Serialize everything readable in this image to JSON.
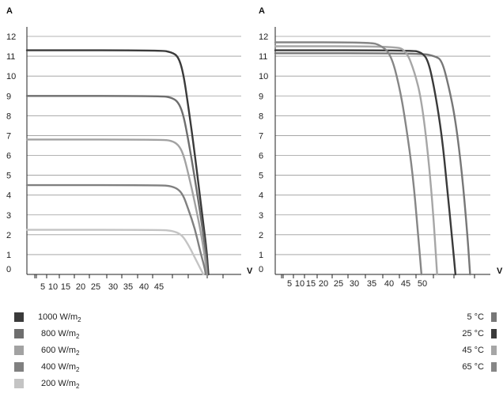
{
  "chart_data": [
    {
      "type": "line",
      "name": "irradiance-iv-chart",
      "xlabel": "V",
      "ylabel": "A",
      "y_ticks": [
        "0",
        "1",
        "2",
        "3",
        "4",
        "5",
        "6",
        "7",
        "8",
        "9",
        "10",
        "11",
        "12"
      ],
      "x_ticks": [
        "5",
        "10",
        "15",
        "20",
        "25",
        "30",
        "35",
        "40",
        "45"
      ],
      "xlim": [
        0,
        62
      ],
      "ylim": [
        0,
        12
      ],
      "grid": true,
      "series": [
        {
          "name": "1000 W/m2",
          "color": "#3a3a3a",
          "points": [
            [
              0,
              11.3
            ],
            [
              40,
              11.3
            ],
            [
              43,
              11.2
            ],
            [
              45,
              11.0
            ],
            [
              46.5,
              10.2
            ],
            [
              48,
              8.5
            ],
            [
              50,
              6.0
            ],
            [
              52,
              3.2
            ],
            [
              53.5,
              1.2
            ],
            [
              54,
              0
            ]
          ]
        },
        {
          "name": "800 W/m2",
          "color": "#6e6e6e",
          "points": [
            [
              0,
              9.0
            ],
            [
              40,
              9.0
            ],
            [
              43,
              8.92
            ],
            [
              45,
              8.7
            ],
            [
              46.5,
              8.1
            ],
            [
              48,
              6.8
            ],
            [
              50,
              4.8
            ],
            [
              52,
              2.6
            ],
            [
              53.3,
              1.0
            ],
            [
              53.7,
              0
            ]
          ]
        },
        {
          "name": "600 W/m2",
          "color": "#a2a2a2",
          "points": [
            [
              0,
              6.8
            ],
            [
              40,
              6.8
            ],
            [
              43,
              6.74
            ],
            [
              45,
              6.55
            ],
            [
              46.5,
              6.1
            ],
            [
              48,
              5.1
            ],
            [
              50,
              3.6
            ],
            [
              52,
              1.9
            ],
            [
              53.1,
              0.7
            ],
            [
              53.5,
              0
            ]
          ]
        },
        {
          "name": "400 W/m2",
          "color": "#808080",
          "points": [
            [
              0,
              4.5
            ],
            [
              40,
              4.5
            ],
            [
              43,
              4.45
            ],
            [
              45,
              4.3
            ],
            [
              46.5,
              4.0
            ],
            [
              48,
              3.3
            ],
            [
              50,
              2.3
            ],
            [
              51.5,
              1.2
            ],
            [
              52.8,
              0.4
            ],
            [
              53.2,
              0
            ]
          ]
        },
        {
          "name": "200 W/m2",
          "color": "#c4c4c4",
          "points": [
            [
              0,
              2.25
            ],
            [
              40,
              2.25
            ],
            [
              43,
              2.2
            ],
            [
              45,
              2.1
            ],
            [
              46.5,
              1.9
            ],
            [
              48,
              1.5
            ],
            [
              49.5,
              1.0
            ],
            [
              51,
              0.5
            ],
            [
              52.2,
              0.1
            ],
            [
              52.5,
              0
            ]
          ]
        }
      ]
    },
    {
      "type": "line",
      "name": "temperature-iv-chart",
      "xlabel": "V",
      "ylabel": "A",
      "y_ticks": [
        "0",
        "1",
        "2",
        "3",
        "4",
        "5",
        "6",
        "7",
        "8",
        "9",
        "10",
        "11",
        "12"
      ],
      "x_ticks": [
        "5",
        "10",
        "15",
        "20",
        "25",
        "30",
        "35",
        "40",
        "45",
        "50"
      ],
      "xlim": [
        0,
        62
      ],
      "ylim": [
        0,
        12
      ],
      "grid": true,
      "series": [
        {
          "name": "5 °C",
          "color": "#777777",
          "points": [
            [
              0,
              11.15
            ],
            [
              43,
              11.15
            ],
            [
              47,
              11.0
            ],
            [
              49,
              10.8
            ],
            [
              51,
              9.5
            ],
            [
              53,
              7.8
            ],
            [
              55,
              5.0
            ],
            [
              56.5,
              2.0
            ],
            [
              57.3,
              0
            ]
          ]
        },
        {
          "name": "25 °C",
          "color": "#3a3a3a",
          "points": [
            [
              0,
              11.3
            ],
            [
              40,
              11.3
            ],
            [
              43,
              11.2
            ],
            [
              45,
              10.8
            ],
            [
              47,
              9.2
            ],
            [
              49,
              7.0
            ],
            [
              50.5,
              4.5
            ],
            [
              52,
              1.8
            ],
            [
              53,
              0
            ]
          ]
        },
        {
          "name": "45 °C",
          "color": "#a6a6a6",
          "points": [
            [
              0,
              11.5
            ],
            [
              35,
              11.5
            ],
            [
              38.5,
              11.3
            ],
            [
              41,
              10.2
            ],
            [
              43,
              8.8
            ],
            [
              45,
              6.0
            ],
            [
              46.5,
              3.0
            ],
            [
              47.6,
              0
            ]
          ]
        },
        {
          "name": "65 °C",
          "color": "#868686",
          "points": [
            [
              0,
              11.7
            ],
            [
              28,
              11.7
            ],
            [
              31,
              11.55
            ],
            [
              34,
              11.1
            ],
            [
              36.5,
              9.5
            ],
            [
              38.5,
              7.5
            ],
            [
              40.5,
              5.0
            ],
            [
              42,
              2.0
            ],
            [
              43,
              0
            ]
          ]
        }
      ]
    }
  ],
  "legend_left": [
    {
      "label": "1000 W/m",
      "sub": "2",
      "color": "#3a3a3a"
    },
    {
      "label": "800 W/m",
      "sub": "2",
      "color": "#6e6e6e"
    },
    {
      "label": "600 W/m",
      "sub": "2",
      "color": "#a2a2a2"
    },
    {
      "label": "400 W/m",
      "sub": "2",
      "color": "#808080"
    },
    {
      "label": "200 W/m",
      "sub": "2",
      "color": "#c4c4c4"
    }
  ],
  "legend_right": [
    {
      "label": "5 °C",
      "color": "#777777"
    },
    {
      "label": "25 °C",
      "color": "#3a3a3a"
    },
    {
      "label": "45 °C",
      "color": "#a6a6a6"
    },
    {
      "label": "65 °C",
      "color": "#868686"
    }
  ]
}
